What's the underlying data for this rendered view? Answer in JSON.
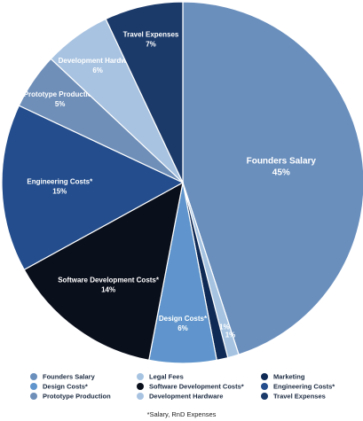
{
  "chart_data": {
    "type": "pie",
    "slices": [
      {
        "name": "Founders Salary",
        "value": 45,
        "label": "45%",
        "color": "#6a8fbd"
      },
      {
        "name": "Legal Fees",
        "value": 1,
        "label": "1%",
        "color": "#a6c4e2"
      },
      {
        "name": "Marketing",
        "value": 1,
        "label": "1%",
        "color": "#0f2a55"
      },
      {
        "name": "Design Costs*",
        "value": 6,
        "label": "6%",
        "color": "#5f95cc"
      },
      {
        "name": "Software Development Costs*",
        "value": 14,
        "label": "14%",
        "color": "#0a0f1c"
      },
      {
        "name": "Engineering Costs*",
        "value": 15,
        "label": "15%",
        "color": "#234d8c"
      },
      {
        "name": "Prototype Production",
        "value": 5,
        "label": "5%",
        "color": "#6f8fb9"
      },
      {
        "name": "Development Hardware",
        "value": 6,
        "label": "6%",
        "color": "#a8c3e1"
      },
      {
        "name": "Travel Expenses",
        "value": 7,
        "label": "7%",
        "color": "#1b3a6a"
      }
    ],
    "legend": [
      [
        "Founders Salary",
        "Legal Fees",
        "Marketing"
      ],
      [
        "Design Costs*",
        "Software Development Costs*",
        "Engineering Costs*"
      ],
      [
        "Prototype Production",
        "Development Hardware",
        "Travel Expenses"
      ]
    ],
    "legend_placement": "bottom"
  },
  "footnote": "*Salary, RnD Expenses"
}
